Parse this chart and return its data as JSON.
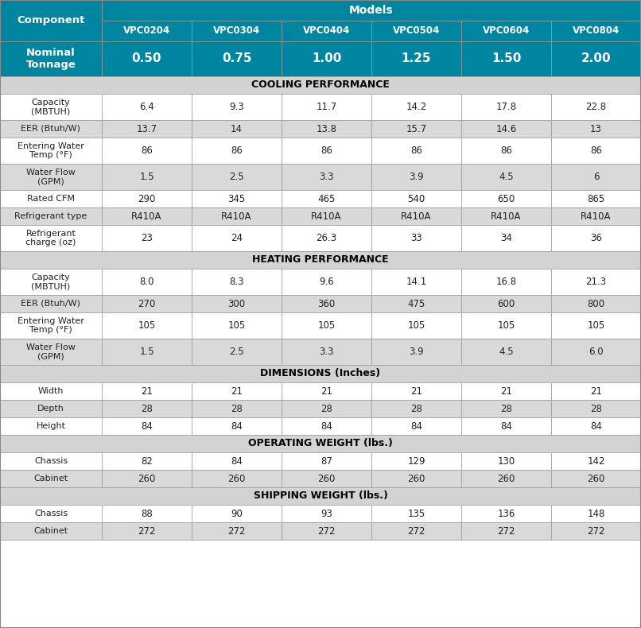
{
  "header_bg": "#0085A1",
  "header_text": "#FFFFFF",
  "section_bg": "#D3D3D3",
  "section_text": "#000000",
  "outer_bg": "#FFFFFF",
  "models_label": "Models",
  "component_label": "Component",
  "nominal_tonnage_label": "Nominal\nTonnage",
  "models": [
    "VPC0204",
    "VPC0304",
    "VPC0404",
    "VPC0504",
    "VPC0604",
    "VPC0804"
  ],
  "tonnages": [
    "0.50",
    "0.75",
    "1.00",
    "1.25",
    "1.50",
    "2.00"
  ],
  "sections": [
    {
      "title": "COOLING PERFORMANCE",
      "rows": [
        {
          "label": "Capacity\n(MBTUH)",
          "values": [
            "6.4",
            "9.3",
            "11.7",
            "14.2",
            "17.8",
            "22.8"
          ],
          "tall": true
        },
        {
          "label": "EER (Btuh/W)",
          "values": [
            "13.7",
            "14",
            "13.8",
            "15.7",
            "14.6",
            "13"
          ],
          "tall": false
        },
        {
          "label": "Entering Water\nTemp (°F)",
          "values": [
            "86",
            "86",
            "86",
            "86",
            "86",
            "86"
          ],
          "tall": true
        },
        {
          "label": "Water Flow\n(GPM)",
          "values": [
            "1.5",
            "2.5",
            "3.3",
            "3.9",
            "4.5",
            "6"
          ],
          "tall": true
        },
        {
          "label": "Rated CFM",
          "values": [
            "290",
            "345",
            "465",
            "540",
            "650",
            "865"
          ],
          "tall": false
        },
        {
          "label": "Refrigerant type",
          "values": [
            "R410A",
            "R410A",
            "R410A",
            "R410A",
            "R410A",
            "R410A"
          ],
          "tall": false
        },
        {
          "label": "Refrigerant\ncharge (oz)",
          "values": [
            "23",
            "24",
            "26.3",
            "33",
            "34",
            "36"
          ],
          "tall": true
        }
      ]
    },
    {
      "title": "HEATING PERFORMANCE",
      "rows": [
        {
          "label": "Capacity\n(MBTUH)",
          "values": [
            "8.0",
            "8.3",
            "9.6",
            "14.1",
            "16.8",
            "21.3"
          ],
          "tall": true
        },
        {
          "label": "EER (Btuh/W)",
          "values": [
            "270",
            "300",
            "360",
            "475",
            "600",
            "800"
          ],
          "tall": false
        },
        {
          "label": "Entering Water\nTemp (°F)",
          "values": [
            "105",
            "105",
            "105",
            "105",
            "105",
            "105"
          ],
          "tall": true
        },
        {
          "label": "Water Flow\n(GPM)",
          "values": [
            "1.5",
            "2.5",
            "3.3",
            "3.9",
            "4.5",
            "6.0"
          ],
          "tall": true
        }
      ]
    },
    {
      "title": "DIMENSIONS (Inches)",
      "rows": [
        {
          "label": "Width",
          "values": [
            "21",
            "21",
            "21",
            "21",
            "21",
            "21"
          ],
          "tall": false
        },
        {
          "label": "Depth",
          "values": [
            "28",
            "28",
            "28",
            "28",
            "28",
            "28"
          ],
          "tall": false
        },
        {
          "label": "Height",
          "values": [
            "84",
            "84",
            "84",
            "84",
            "84",
            "84"
          ],
          "tall": false
        }
      ]
    },
    {
      "title": "OPERATING WEIGHT (lbs.)",
      "rows": [
        {
          "label": "Chassis",
          "values": [
            "82",
            "84",
            "87",
            "129",
            "130",
            "142"
          ],
          "tall": false
        },
        {
          "label": "Cabinet",
          "values": [
            "260",
            "260",
            "260",
            "260",
            "260",
            "260"
          ],
          "tall": false
        }
      ]
    },
    {
      "title": "SHIPPING WEIGHT (lbs.)",
      "rows": [
        {
          "label": "Chassis",
          "values": [
            "88",
            "90",
            "93",
            "135",
            "136",
            "148"
          ],
          "tall": false
        },
        {
          "label": "Cabinet",
          "values": [
            "272",
            "272",
            "272",
            "272",
            "272",
            "272"
          ],
          "tall": false
        }
      ]
    }
  ]
}
